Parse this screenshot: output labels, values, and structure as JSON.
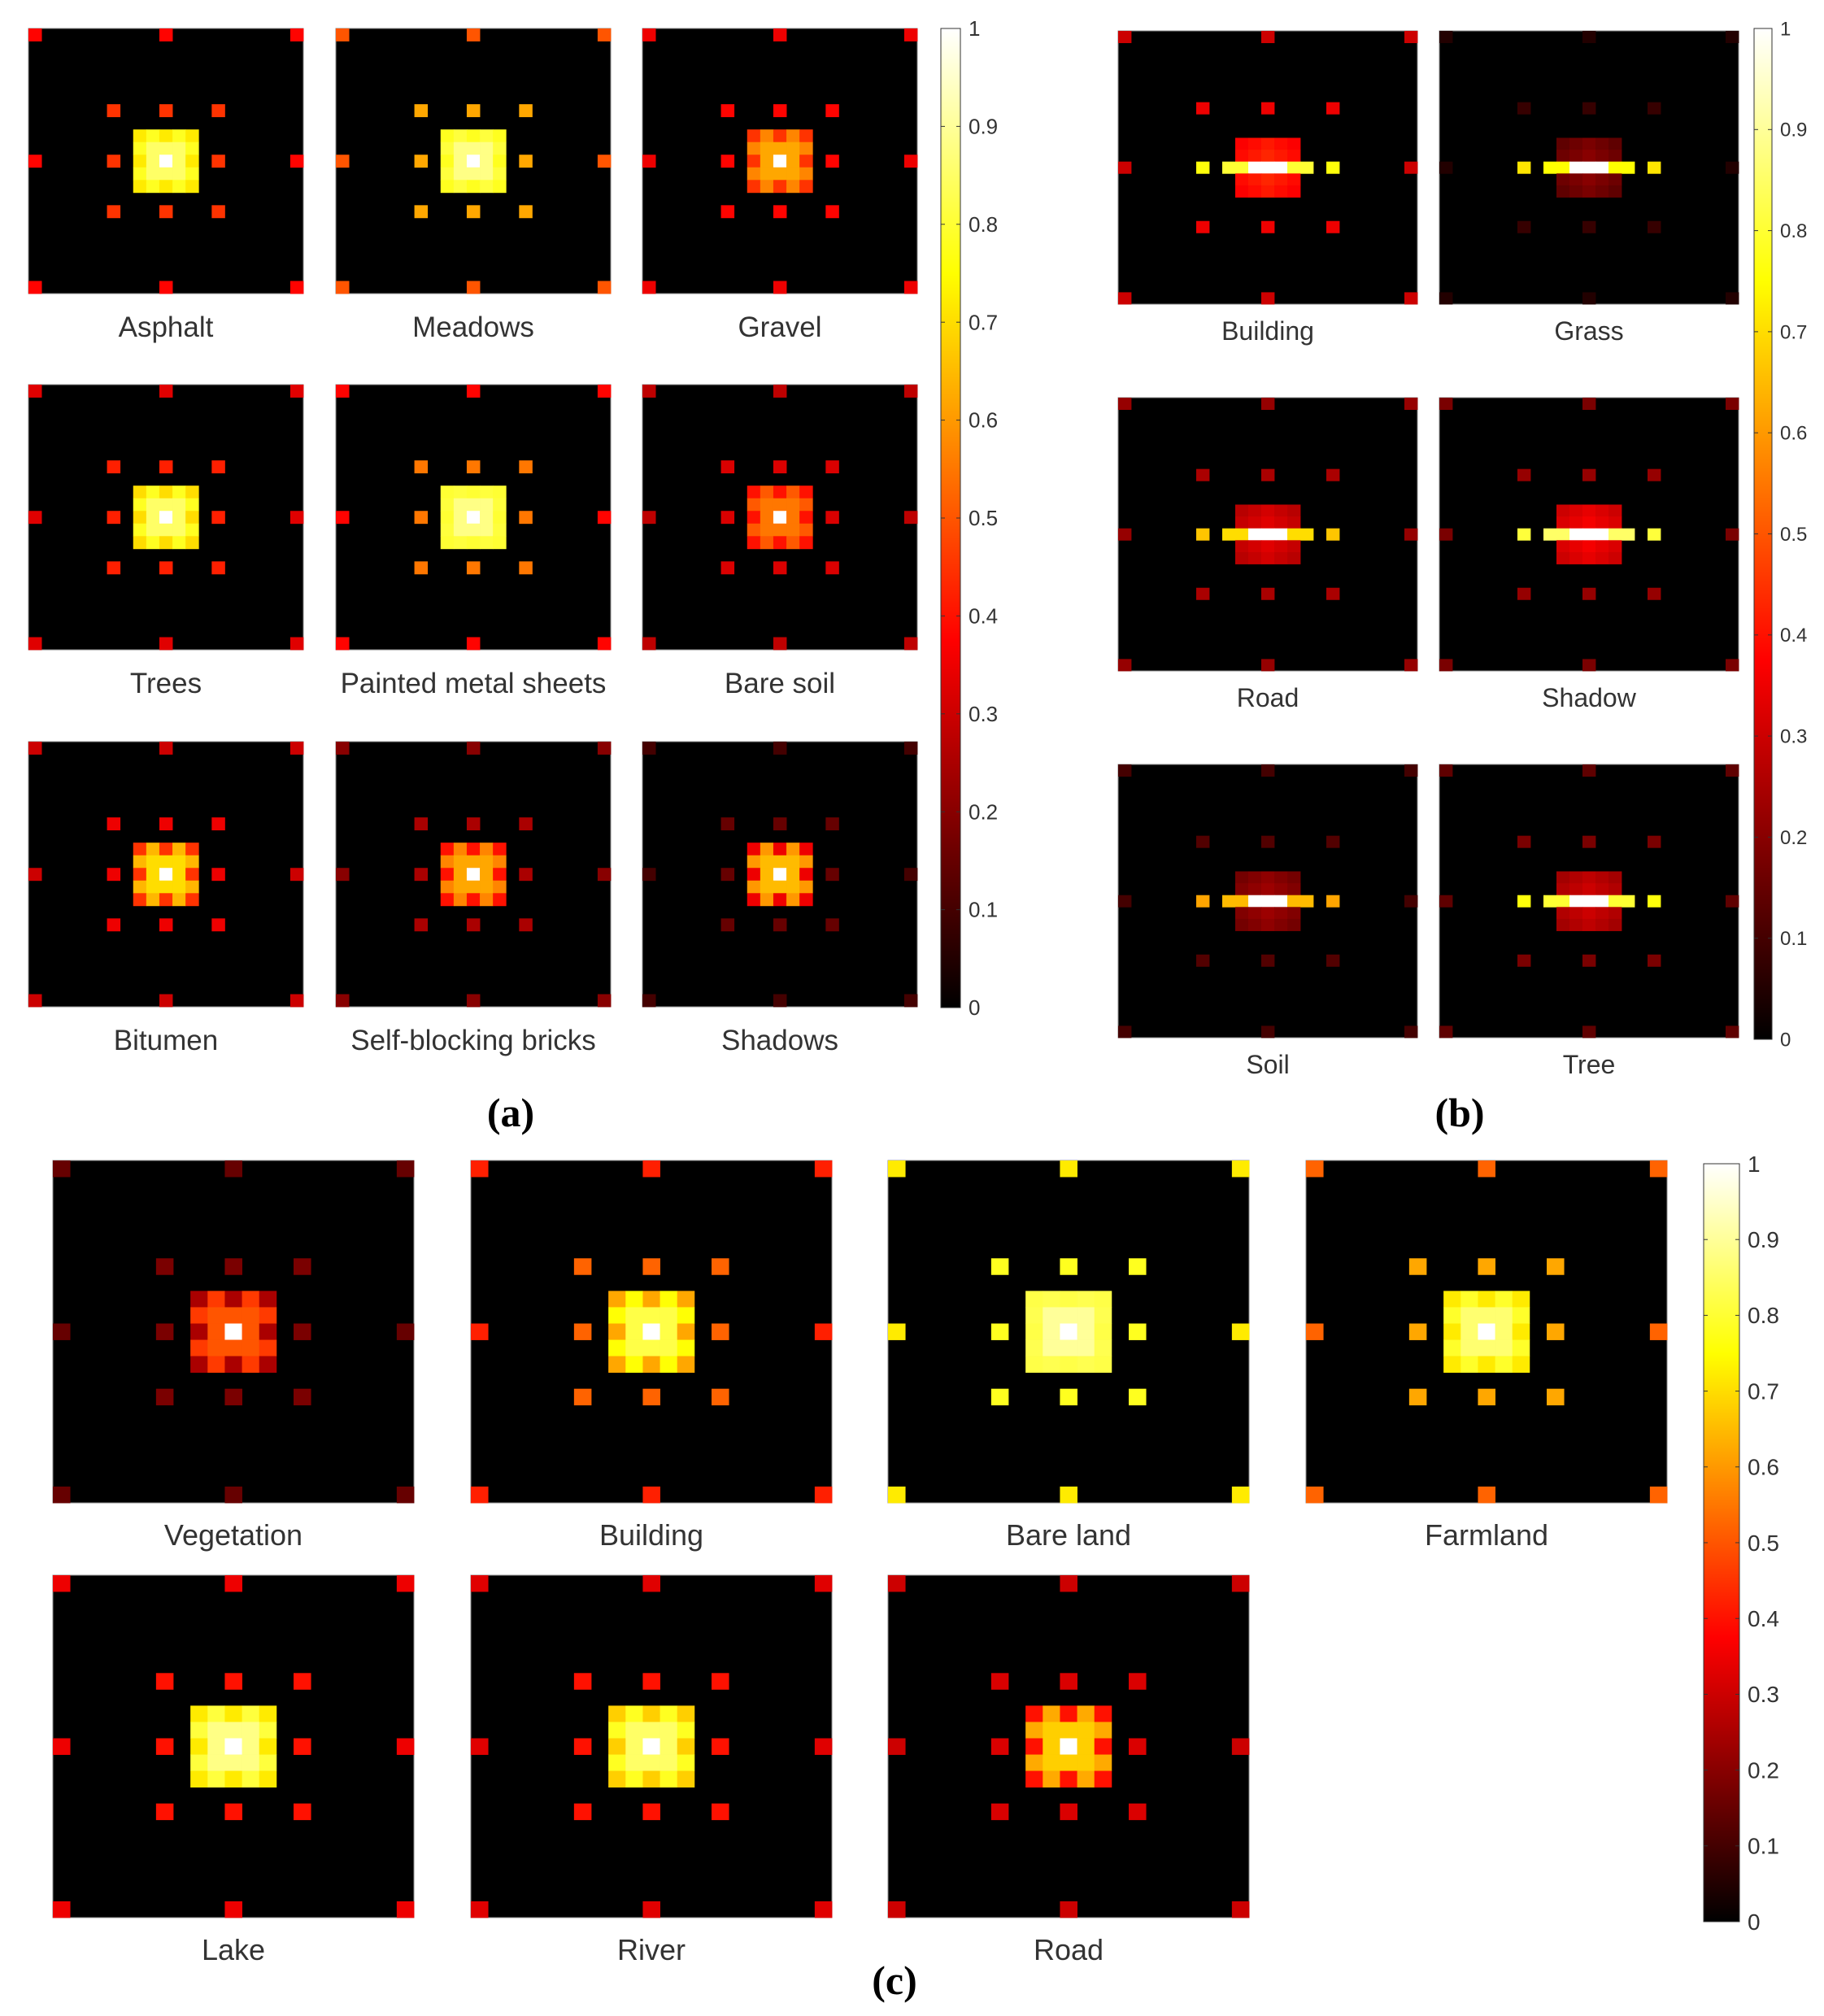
{
  "colormap": "hot",
  "colorbar_stops": [
    {
      "value": 0,
      "color": "#000000"
    },
    {
      "value": 0.375,
      "color": "#ff0000"
    },
    {
      "value": 0.75,
      "color": "#ffff00"
    },
    {
      "value": 1,
      "color": "#ffffff"
    }
  ],
  "background_color": "#ffffff",
  "chart_data": [
    {
      "type": "heatmap",
      "panel_label": "(a)",
      "grid_size": 21,
      "pattern": "square-rings",
      "colorbar": {
        "range": [
          0,
          1
        ],
        "ticks": [
          "0",
          "0.1",
          "0.2",
          "0.3",
          "0.4",
          "0.5",
          "0.6",
          "0.7",
          "0.8",
          "0.9",
          "1"
        ]
      },
      "classes": [
        {
          "label": "Asphalt",
          "center": 1.0,
          "ring1": 0.85,
          "ring2": 0.72,
          "ring4": 0.45,
          "ring10": 0.38
        },
        {
          "label": "Meadows",
          "center": 1.0,
          "ring1": 0.88,
          "ring2": 0.78,
          "ring4": 0.62,
          "ring10": 0.5
        },
        {
          "label": "Gravel",
          "center": 1.0,
          "ring1": 0.62,
          "ring2": 0.45,
          "ring4": 0.38,
          "ring10": 0.35
        },
        {
          "label": "Trees",
          "center": 1.0,
          "ring1": 0.85,
          "ring2": 0.7,
          "ring4": 0.42,
          "ring10": 0.33
        },
        {
          "label": "Painted metal sheets",
          "center": 1.0,
          "ring1": 0.88,
          "ring2": 0.8,
          "ring4": 0.55,
          "ring10": 0.38
        },
        {
          "label": "Bare soil",
          "center": 1.0,
          "ring1": 0.55,
          "ring2": 0.4,
          "ring4": 0.32,
          "ring10": 0.28
        },
        {
          "label": "Bitumen",
          "center": 1.0,
          "ring1": 0.7,
          "ring2": 0.45,
          "ring4": 0.35,
          "ring10": 0.3
        },
        {
          "label": "Self-blocking bricks",
          "center": 1.0,
          "ring1": 0.62,
          "ring2": 0.4,
          "ring4": 0.25,
          "ring10": 0.2
        },
        {
          "label": "Shadows",
          "center": 1.0,
          "ring1": 0.65,
          "ring2": 0.35,
          "ring4": 0.15,
          "ring10": 0.1
        }
      ]
    },
    {
      "type": "heatmap",
      "panel_label": "(b)",
      "grid_size": 23,
      "pattern": "horizontal-bar",
      "colorbar": {
        "range": [
          0,
          1
        ],
        "ticks": [
          "0",
          "0.1",
          "0.2",
          "0.3",
          "0.4",
          "0.5",
          "0.6",
          "0.7",
          "0.8",
          "0.9",
          "1"
        ]
      },
      "classes": [
        {
          "label": "Building",
          "center": 1.0,
          "hbar": 0.8,
          "ring1": 0.45,
          "ring2": 0.38,
          "ring5": 0.35,
          "ring11": 0.3
        },
        {
          "label": "Grass",
          "center": 1.0,
          "hbar": 0.75,
          "ring1": 0.22,
          "ring2": 0.12,
          "ring5": 0.08,
          "ring11": 0.05
        },
        {
          "label": "Road",
          "center": 1.0,
          "hbar": 0.7,
          "ring1": 0.35,
          "ring2": 0.28,
          "ring5": 0.25,
          "ring11": 0.22
        },
        {
          "label": "Shadow",
          "center": 1.0,
          "hbar": 0.85,
          "ring1": 0.38,
          "ring2": 0.3,
          "ring5": 0.22,
          "ring11": 0.18
        },
        {
          "label": "Soil",
          "center": 1.0,
          "hbar": 0.65,
          "ring1": 0.25,
          "ring2": 0.18,
          "ring5": 0.12,
          "ring11": 0.1
        },
        {
          "label": "Tree",
          "center": 1.0,
          "hbar": 0.8,
          "ring1": 0.32,
          "ring2": 0.22,
          "ring5": 0.18,
          "ring11": 0.14
        }
      ]
    },
    {
      "type": "heatmap",
      "panel_label": "(c)",
      "grid_size": 21,
      "pattern": "square-rings",
      "colorbar": {
        "range": [
          0,
          1
        ],
        "ticks": [
          "0",
          "0.1",
          "0.2",
          "0.3",
          "0.4",
          "0.5",
          "0.6",
          "0.7",
          "0.8",
          "0.9",
          "1"
        ]
      },
      "classes": [
        {
          "label": "Vegetation",
          "center": 1.0,
          "ring1": 0.5,
          "ring2": 0.25,
          "ring4": 0.18,
          "ring10": 0.15
        },
        {
          "label": "Building",
          "center": 1.0,
          "ring1": 0.82,
          "ring2": 0.62,
          "ring4": 0.52,
          "ring10": 0.42
        },
        {
          "label": "Bare land",
          "center": 1.0,
          "ring1": 0.9,
          "ring2": 0.82,
          "ring4": 0.78,
          "ring10": 0.72
        },
        {
          "label": "Farmland",
          "center": 1.0,
          "ring1": 0.86,
          "ring2": 0.72,
          "ring4": 0.62,
          "ring10": 0.52
        },
        {
          "label": "Lake",
          "center": 1.0,
          "ring1": 0.88,
          "ring2": 0.72,
          "ring4": 0.4,
          "ring10": 0.35
        },
        {
          "label": "River",
          "center": 1.0,
          "ring1": 0.85,
          "ring2": 0.68,
          "ring4": 0.4,
          "ring10": 0.33
        },
        {
          "label": "Road",
          "center": 1.0,
          "ring1": 0.68,
          "ring2": 0.4,
          "ring4": 0.32,
          "ring10": 0.3
        }
      ]
    }
  ]
}
